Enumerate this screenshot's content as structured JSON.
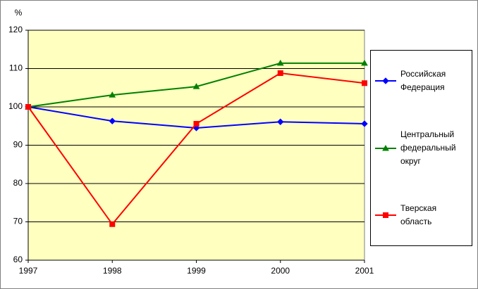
{
  "chart_data": {
    "type": "line",
    "y_label": "%",
    "x": [
      1997,
      1998,
      1999,
      2000,
      2001
    ],
    "xlim": [
      1997,
      2001
    ],
    "xticks": [
      1997,
      1998,
      1999,
      2000,
      2001
    ],
    "ylim": [
      60,
      120
    ],
    "yticks": [
      60,
      70,
      80,
      90,
      100,
      110,
      120
    ],
    "grid": true,
    "legend": "right",
    "series": [
      {
        "name": "Российская Федерация",
        "color": "#0000ff",
        "marker": "diamond",
        "values": [
          100,
          96.3,
          94.5,
          96.1,
          95.6
        ]
      },
      {
        "name": "Центральный федеральный округ",
        "color": "#008000",
        "marker": "triangle",
        "values": [
          100,
          103.1,
          105.3,
          111.4,
          111.4
        ]
      },
      {
        "name": "Тверская область",
        "color": "#ff0000",
        "marker": "square",
        "values": [
          100,
          69.4,
          95.6,
          108.8,
          106.2
        ]
      }
    ]
  }
}
